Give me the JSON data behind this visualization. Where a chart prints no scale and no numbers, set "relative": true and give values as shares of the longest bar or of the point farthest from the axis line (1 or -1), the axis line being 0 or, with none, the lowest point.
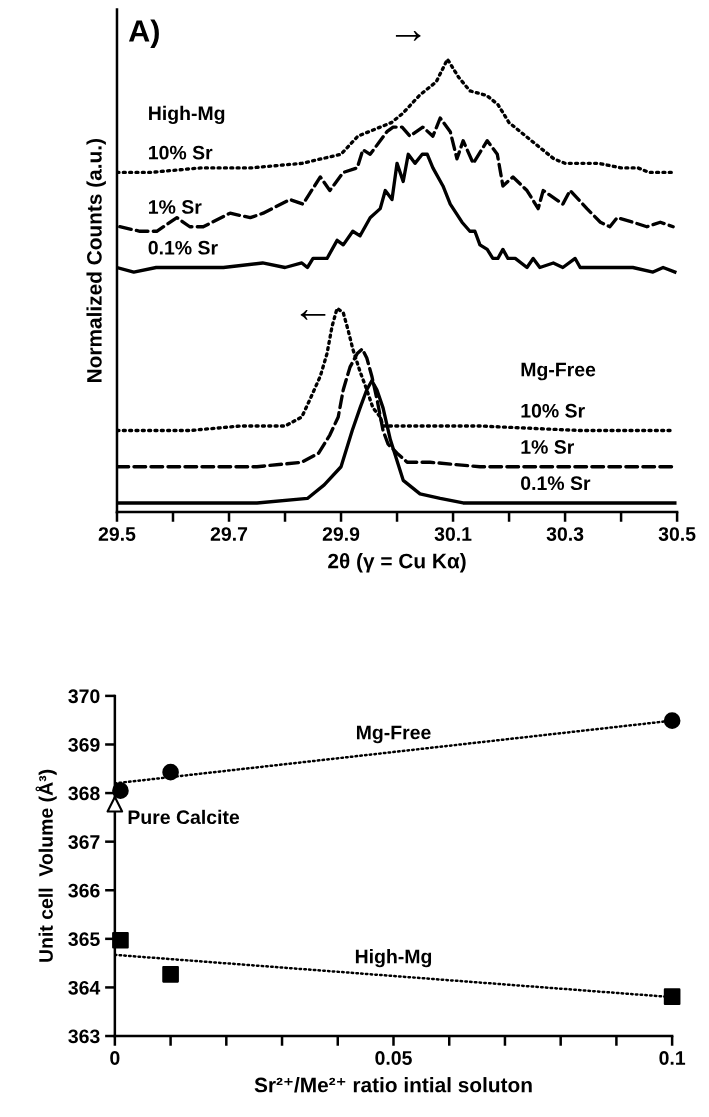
{
  "chart_data": [
    {
      "type": "line",
      "relative": true,
      "xlabel": "2θ (γ = Cu Kα)",
      "ylabel": "Normalized Counts (a.u.)",
      "tick_labels": "x",
      "xlim": [
        29.5,
        30.5
      ],
      "xticks": [
        29.5,
        {
          "value": 29.6,
          "label": null
        },
        29.7,
        {
          "value": 29.8,
          "label": null
        },
        29.9,
        {
          "value": 30.0,
          "label": null
        },
        30.1,
        {
          "value": 30.2,
          "label": null
        },
        30.3,
        {
          "value": 30.4,
          "label": null
        },
        30.5
      ],
      "series": [
        {
          "name": "10% Sr",
          "color": "#000000",
          "line_style": "dotted",
          "x": [
            29.5,
            29.56,
            29.65,
            29.74,
            29.83,
            29.9,
            29.93,
            29.99,
            30.01,
            30.04,
            30.07,
            30.09,
            30.1,
            30.11,
            30.13,
            30.16,
            30.18,
            30.19,
            30.2,
            30.22,
            30.24,
            30.26,
            30.28,
            30.3,
            30.36,
            30.4,
            30.43,
            30.45,
            30.49
          ],
          "values": [
            0.75,
            0.75,
            0.76,
            0.76,
            0.77,
            0.79,
            0.83,
            0.86,
            0.88,
            0.92,
            0.95,
            1.0,
            0.98,
            0.96,
            0.93,
            0.92,
            0.9,
            0.88,
            0.86,
            0.84,
            0.82,
            0.8,
            0.78,
            0.77,
            0.77,
            0.76,
            0.76,
            0.75,
            0.75
          ]
        },
        {
          "name": "1% Sr",
          "color": "#000000",
          "line_style": "dashed",
          "x": [
            29.505,
            29.541,
            29.571,
            29.607,
            29.63,
            29.654,
            29.702,
            29.738,
            29.761,
            29.809,
            29.832,
            29.863,
            29.88,
            29.904,
            29.929,
            29.939,
            29.952,
            29.982,
            29.993,
            30.009,
            30.023,
            30.046,
            30.064,
            30.077,
            30.095,
            30.107,
            30.118,
            30.136,
            30.161,
            30.179,
            30.189,
            30.207,
            30.232,
            30.252,
            30.261,
            30.296,
            30.309,
            30.339,
            30.363,
            30.38,
            30.393,
            30.421,
            30.446,
            30.47,
            30.493
          ],
          "values": [
            0.63,
            0.62,
            0.62,
            0.65,
            0.63,
            0.63,
            0.66,
            0.65,
            0.66,
            0.69,
            0.68,
            0.74,
            0.71,
            0.75,
            0.76,
            0.8,
            0.79,
            0.84,
            0.85,
            0.85,
            0.83,
            0.85,
            0.83,
            0.87,
            0.84,
            0.78,
            0.82,
            0.77,
            0.82,
            0.79,
            0.72,
            0.74,
            0.71,
            0.67,
            0.71,
            0.68,
            0.71,
            0.67,
            0.64,
            0.63,
            0.65,
            0.64,
            0.63,
            0.64,
            0.63
          ]
        },
        {
          "name": "0.1% Sr",
          "color": "#000000",
          "line_style": "solid",
          "x": [
            29.5,
            29.53,
            29.57,
            29.63,
            29.69,
            29.76,
            29.8,
            29.83,
            29.84,
            29.85,
            29.875,
            29.893,
            29.904,
            29.921,
            29.934,
            29.952,
            29.97,
            29.979,
            29.991,
            30.0,
            30.011,
            30.02,
            30.032,
            30.045,
            30.054,
            30.064,
            30.082,
            30.095,
            30.116,
            30.13,
            30.139,
            30.148,
            30.161,
            30.171,
            30.18,
            30.189,
            30.198,
            30.211,
            30.232,
            30.243,
            30.255,
            30.279,
            30.296,
            30.318,
            30.327,
            30.35,
            30.386,
            30.421,
            30.457,
            30.475,
            30.496
          ],
          "values": [
            0.54,
            0.53,
            0.54,
            0.54,
            0.54,
            0.55,
            0.54,
            0.55,
            0.54,
            0.56,
            0.56,
            0.6,
            0.59,
            0.62,
            0.61,
            0.65,
            0.67,
            0.71,
            0.69,
            0.77,
            0.73,
            0.79,
            0.77,
            0.79,
            0.79,
            0.76,
            0.72,
            0.68,
            0.64,
            0.62,
            0.62,
            0.59,
            0.58,
            0.56,
            0.56,
            0.58,
            0.56,
            0.56,
            0.54,
            0.56,
            0.54,
            0.55,
            0.54,
            0.56,
            0.54,
            0.54,
            0.54,
            0.54,
            0.53,
            0.54,
            0.53
          ]
        },
        {
          "name": "10% Sr",
          "color": "#000000",
          "line_style": "dotted",
          "x": [
            29.5,
            29.63,
            29.72,
            29.8,
            29.83,
            29.845,
            29.863,
            29.875,
            29.884,
            29.893,
            29.904,
            29.913,
            29.921,
            29.934,
            29.946,
            29.957,
            29.97,
            29.975,
            30.029,
            30.148,
            30.327,
            30.491
          ],
          "values": [
            0.18,
            0.18,
            0.19,
            0.19,
            0.21,
            0.25,
            0.3,
            0.35,
            0.41,
            0.45,
            0.44,
            0.4,
            0.36,
            0.31,
            0.27,
            0.23,
            0.21,
            0.19,
            0.19,
            0.19,
            0.18,
            0.18
          ]
        },
        {
          "name": "1% Sr",
          "color": "#000000",
          "line_style": "dashed",
          "x": [
            29.5,
            29.63,
            29.75,
            29.83,
            29.86,
            29.88,
            29.895,
            29.904,
            29.916,
            29.929,
            29.938,
            29.946,
            29.955,
            29.964,
            29.975,
            29.984,
            30.0,
            30.018,
            30.059,
            30.148,
            30.327,
            30.496
          ],
          "values": [
            0.1,
            0.1,
            0.1,
            0.11,
            0.13,
            0.17,
            0.21,
            0.27,
            0.32,
            0.35,
            0.36,
            0.34,
            0.3,
            0.25,
            0.18,
            0.15,
            0.13,
            0.11,
            0.11,
            0.1,
            0.1,
            0.1
          ]
        },
        {
          "name": "0.1% Sr",
          "color": "#000000",
          "line_style": "solid",
          "x": [
            29.5,
            29.63,
            29.75,
            29.84,
            29.87,
            29.9,
            29.92,
            29.934,
            29.946,
            29.955,
            29.964,
            29.975,
            29.988,
            30.011,
            30.041,
            30.077,
            30.118,
            30.327,
            30.496
          ],
          "values": [
            0.02,
            0.02,
            0.02,
            0.03,
            0.06,
            0.1,
            0.18,
            0.23,
            0.27,
            0.29,
            0.27,
            0.23,
            0.16,
            0.07,
            0.04,
            0.03,
            0.02,
            0.02,
            0.02
          ]
        }
      ],
      "annotations": [
        "A)",
        "→",
        "←",
        "High-Mg",
        "Mg-Free"
      ]
    },
    {
      "type": "scatter",
      "xlabel": "Sr²⁺/Me²⁺ ratio intial soluton",
      "ylabel": "Unit cell  Volume (Å³)",
      "xlim": [
        0,
        0.1
      ],
      "ylim": [
        363,
        370
      ],
      "xticks": [
        0,
        {
          "value": 0.01,
          "label": null
        },
        {
          "value": 0.02,
          "label": null
        },
        {
          "value": 0.03,
          "label": null
        },
        {
          "value": 0.04,
          "label": null
        },
        0.05,
        {
          "value": 0.06,
          "label": null
        },
        {
          "value": 0.07,
          "label": null
        },
        {
          "value": 0.08,
          "label": null
        },
        {
          "value": 0.09,
          "label": null
        },
        0.1
      ],
      "yticks": [
        363,
        364,
        365,
        366,
        367,
        368,
        369,
        370
      ],
      "series": [
        {
          "name": "Mg-Free",
          "type": "line",
          "color": "#000000",
          "line_style": "dotted",
          "marker": "none",
          "x": [
            0,
            0.1
          ],
          "values": [
            368.2,
            369.49
          ]
        },
        {
          "name": "High-Mg",
          "type": "line",
          "color": "#000000",
          "line_style": "dotted",
          "marker": "none",
          "x": [
            0,
            0.1
          ],
          "values": [
            364.67,
            363.8
          ]
        },
        {
          "type": "scatter",
          "color": "#000000",
          "marker": "circle",
          "x": [
            0.001,
            0.01,
            0.1
          ],
          "values": [
            368.05,
            368.43,
            369.49
          ]
        },
        {
          "type": "scatter",
          "color": "#000000",
          "marker": "square",
          "x": [
            0.001,
            0.01,
            0.1
          ],
          "values": [
            364.97,
            364.27,
            363.81
          ]
        },
        {
          "name": "Pure Calcite",
          "type": "scatter",
          "color": "#ffffff",
          "marker": "triangle",
          "x": [
            0
          ],
          "values": [
            367.77
          ]
        }
      ]
    }
  ]
}
